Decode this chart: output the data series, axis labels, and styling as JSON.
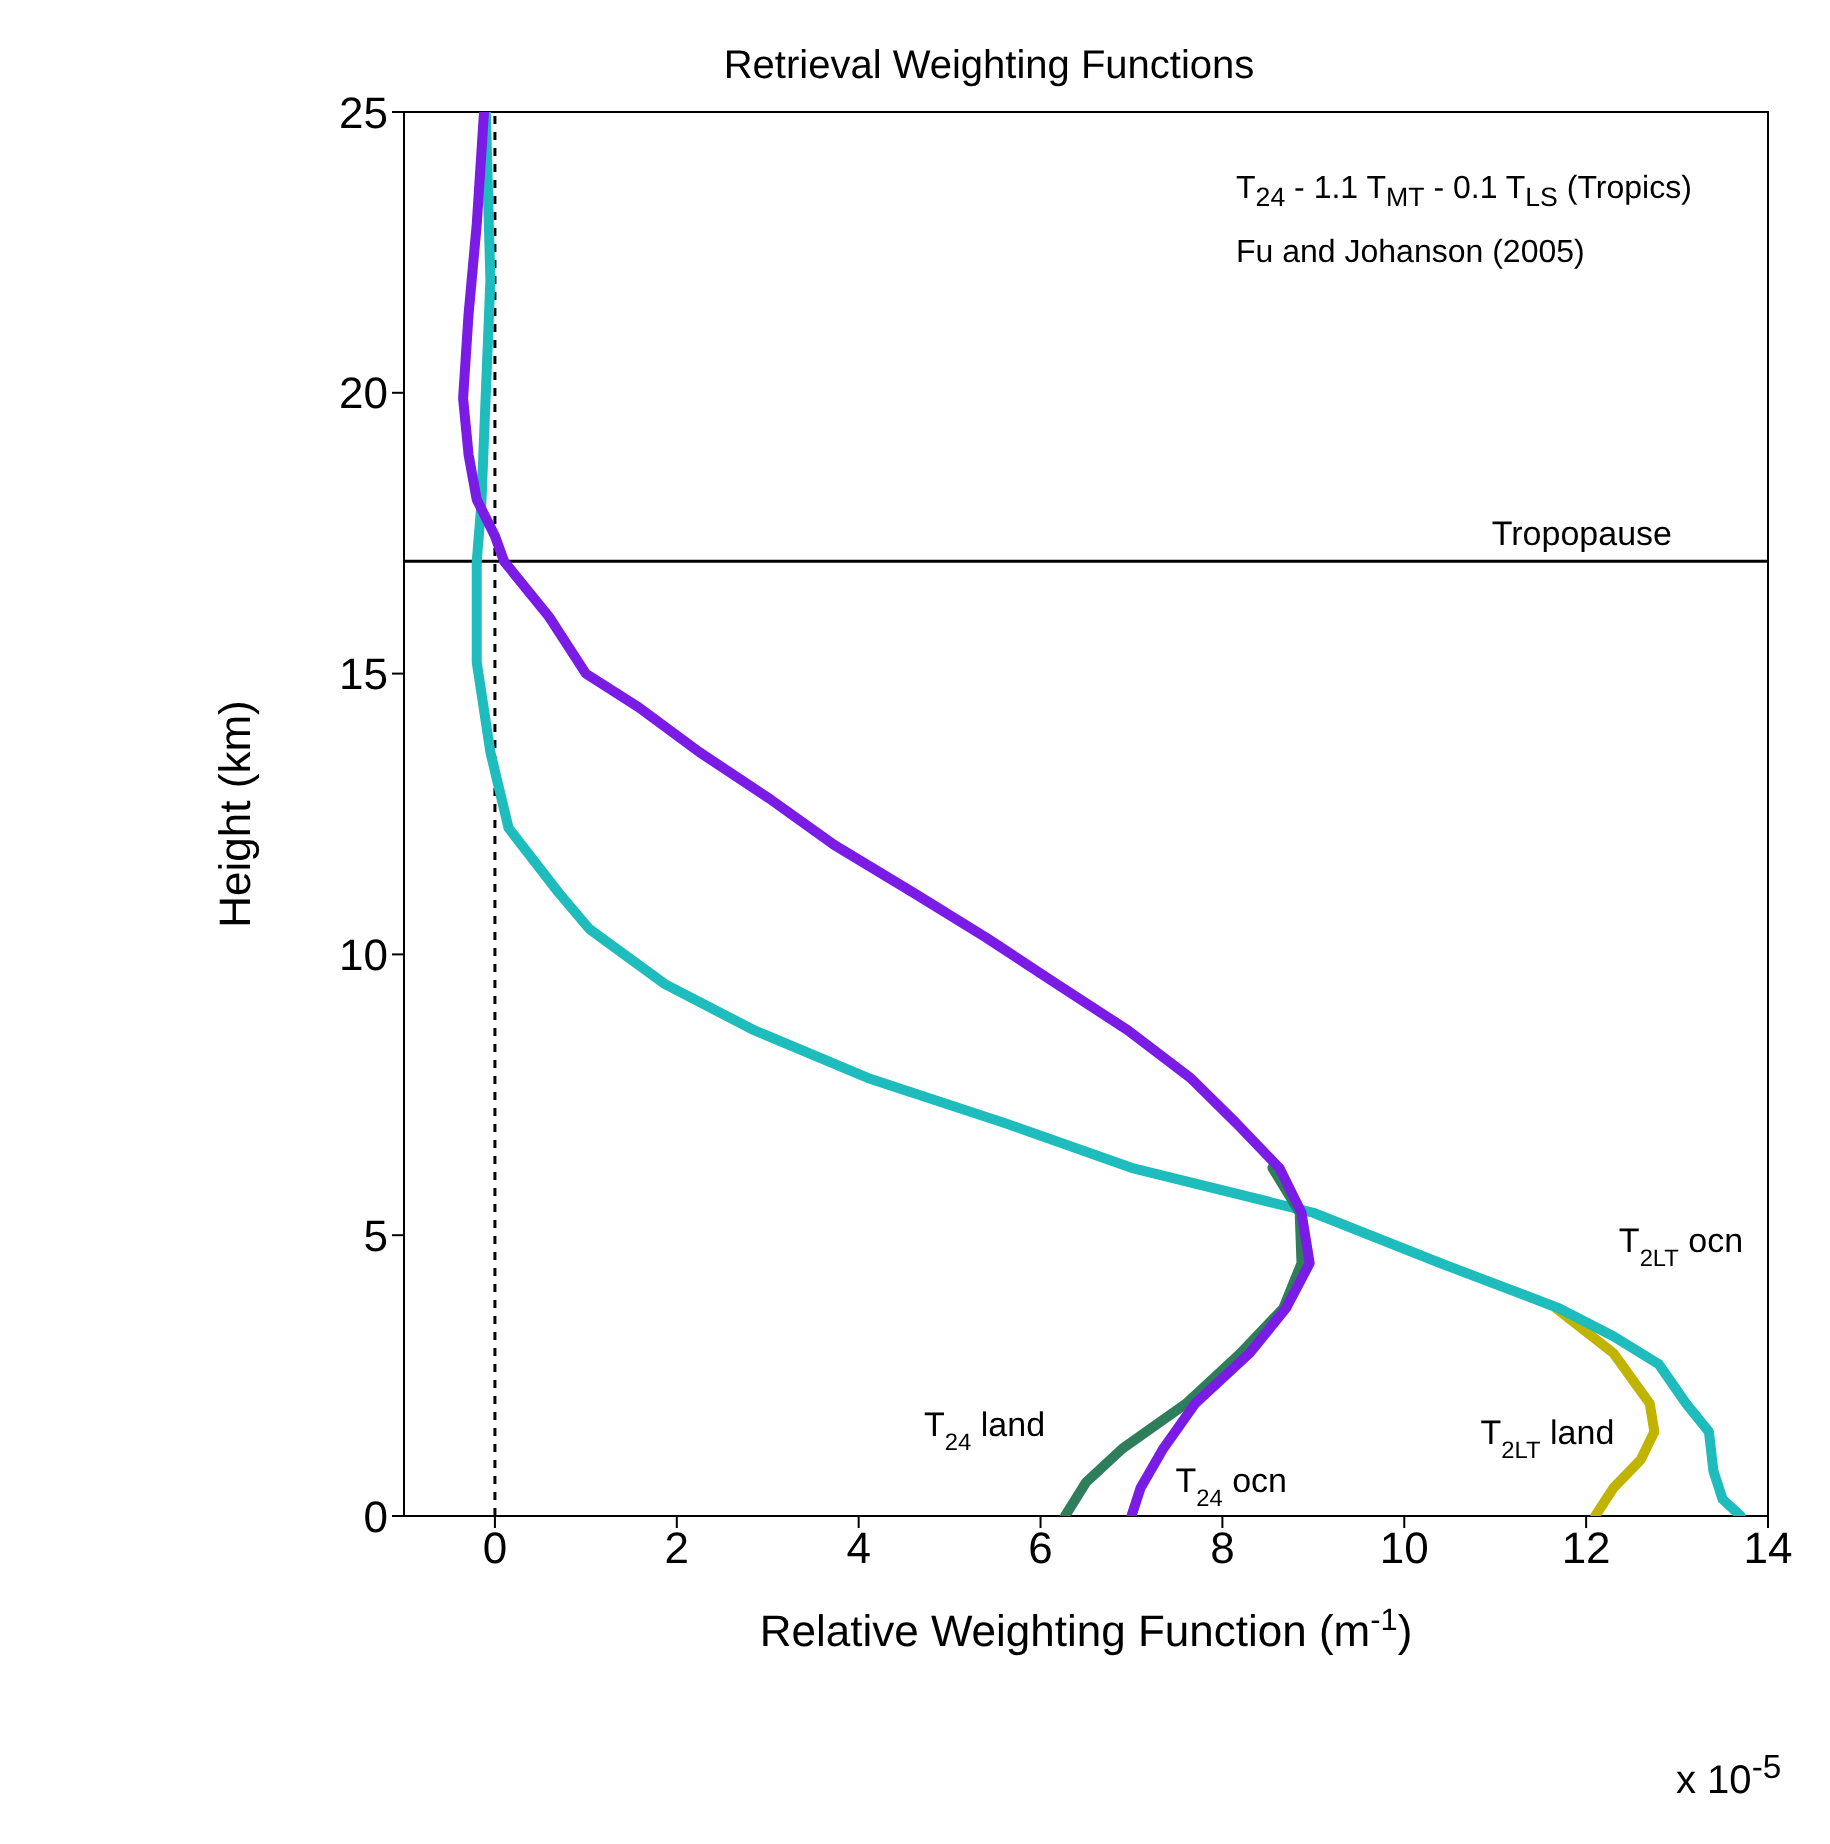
{
  "chart_data": {
    "type": "line",
    "title": "Retrieval Weighting Functions",
    "xlabel": "Relative Weighting Function (m$^{-1}$)",
    "ylabel": "Height (km)",
    "annotations": [
      "T$_{24}$ - 1.1 T$_{MT}$ - 0.1 T$_{LS}$ (Tropics)",
      "Fu and Johanson (2005)",
      "x 10$^{-5}$"
    ],
    "xlim": [
      -1,
      14
    ],
    "xticks": [
      0,
      2,
      4,
      6,
      8,
      10,
      12,
      14
    ],
    "ylim": [
      0,
      25
    ],
    "yticks": [
      0,
      5,
      10,
      15,
      20,
      25
    ],
    "marker": "none",
    "line_style": "solid",
    "ref_lines": [
      {
        "axis": "x",
        "value": 0,
        "label": null,
        "line_style": "dashed",
        "color": "#000000"
      },
      {
        "axis": "y",
        "value": 17,
        "label": "Tropopause",
        "line_style": "solid",
        "color": "#000000"
      }
    ],
    "series": [
      {
        "name": "T$_{2LT}$ land",
        "color": "#c0b400",
        "x": [
          12.1,
          12.3,
          12.6,
          12.75,
          12.7,
          12.3,
          11.67
        ],
        "values": [
          0,
          0.5,
          1,
          1.5,
          2,
          2.9,
          3.7
        ]
      },
      {
        "name": "T$_{2LT}$ ocn",
        "color": "#1ebcbc",
        "x": [
          13.7,
          13.5,
          13.4,
          13.35,
          13.1,
          12.8,
          12.3,
          11.7,
          10.4,
          9.0,
          7.0,
          5.6,
          4.1,
          2.85,
          1.87,
          1.04,
          0.7,
          0.15,
          -0.05,
          -0.2,
          -0.2,
          -0.15,
          -0.1,
          -0.05,
          -0.1
        ],
        "values": [
          0,
          0.3,
          0.8,
          1.5,
          2,
          2.7,
          3.2,
          3.7,
          4.5,
          5.4,
          6.2,
          7,
          7.8,
          8.65,
          9.47,
          10.45,
          11.1,
          12.25,
          13.6,
          15.2,
          17,
          18,
          20,
          22,
          25
        ]
      },
      {
        "name": "T$_{24}$ land",
        "color": "#2e7d5b",
        "x": [
          6.27,
          6.5,
          6.9,
          7.6,
          8.2,
          8.67,
          8.87,
          8.85,
          8.55
        ],
        "values": [
          0,
          0.6,
          1.2,
          2,
          2.9,
          3.7,
          4.5,
          5.4,
          6.2
        ]
      },
      {
        "name": "T$_{24}$ ocn",
        "color": "#7a1be6",
        "x": [
          7.0,
          7.1,
          7.35,
          7.7,
          8.3,
          8.7,
          8.96,
          8.87,
          8.63,
          8.15,
          7.65,
          6.96,
          6.18,
          5.4,
          4.6,
          3.73,
          3.04,
          2.25,
          1.58,
          1.0,
          0.6,
          0.1,
          0,
          -0.2,
          -0.29,
          -0.35,
          -0.29,
          -0.2,
          -0.12
        ],
        "values": [
          0,
          0.5,
          1.2,
          2,
          2.9,
          3.7,
          4.5,
          5.4,
          6.19,
          7,
          7.8,
          8.65,
          9.47,
          10.3,
          11.1,
          11.95,
          12.75,
          13.6,
          14.4,
          15,
          16,
          17,
          17.45,
          18.1,
          18.9,
          19.9,
          21.4,
          23,
          25
        ]
      }
    ]
  }
}
